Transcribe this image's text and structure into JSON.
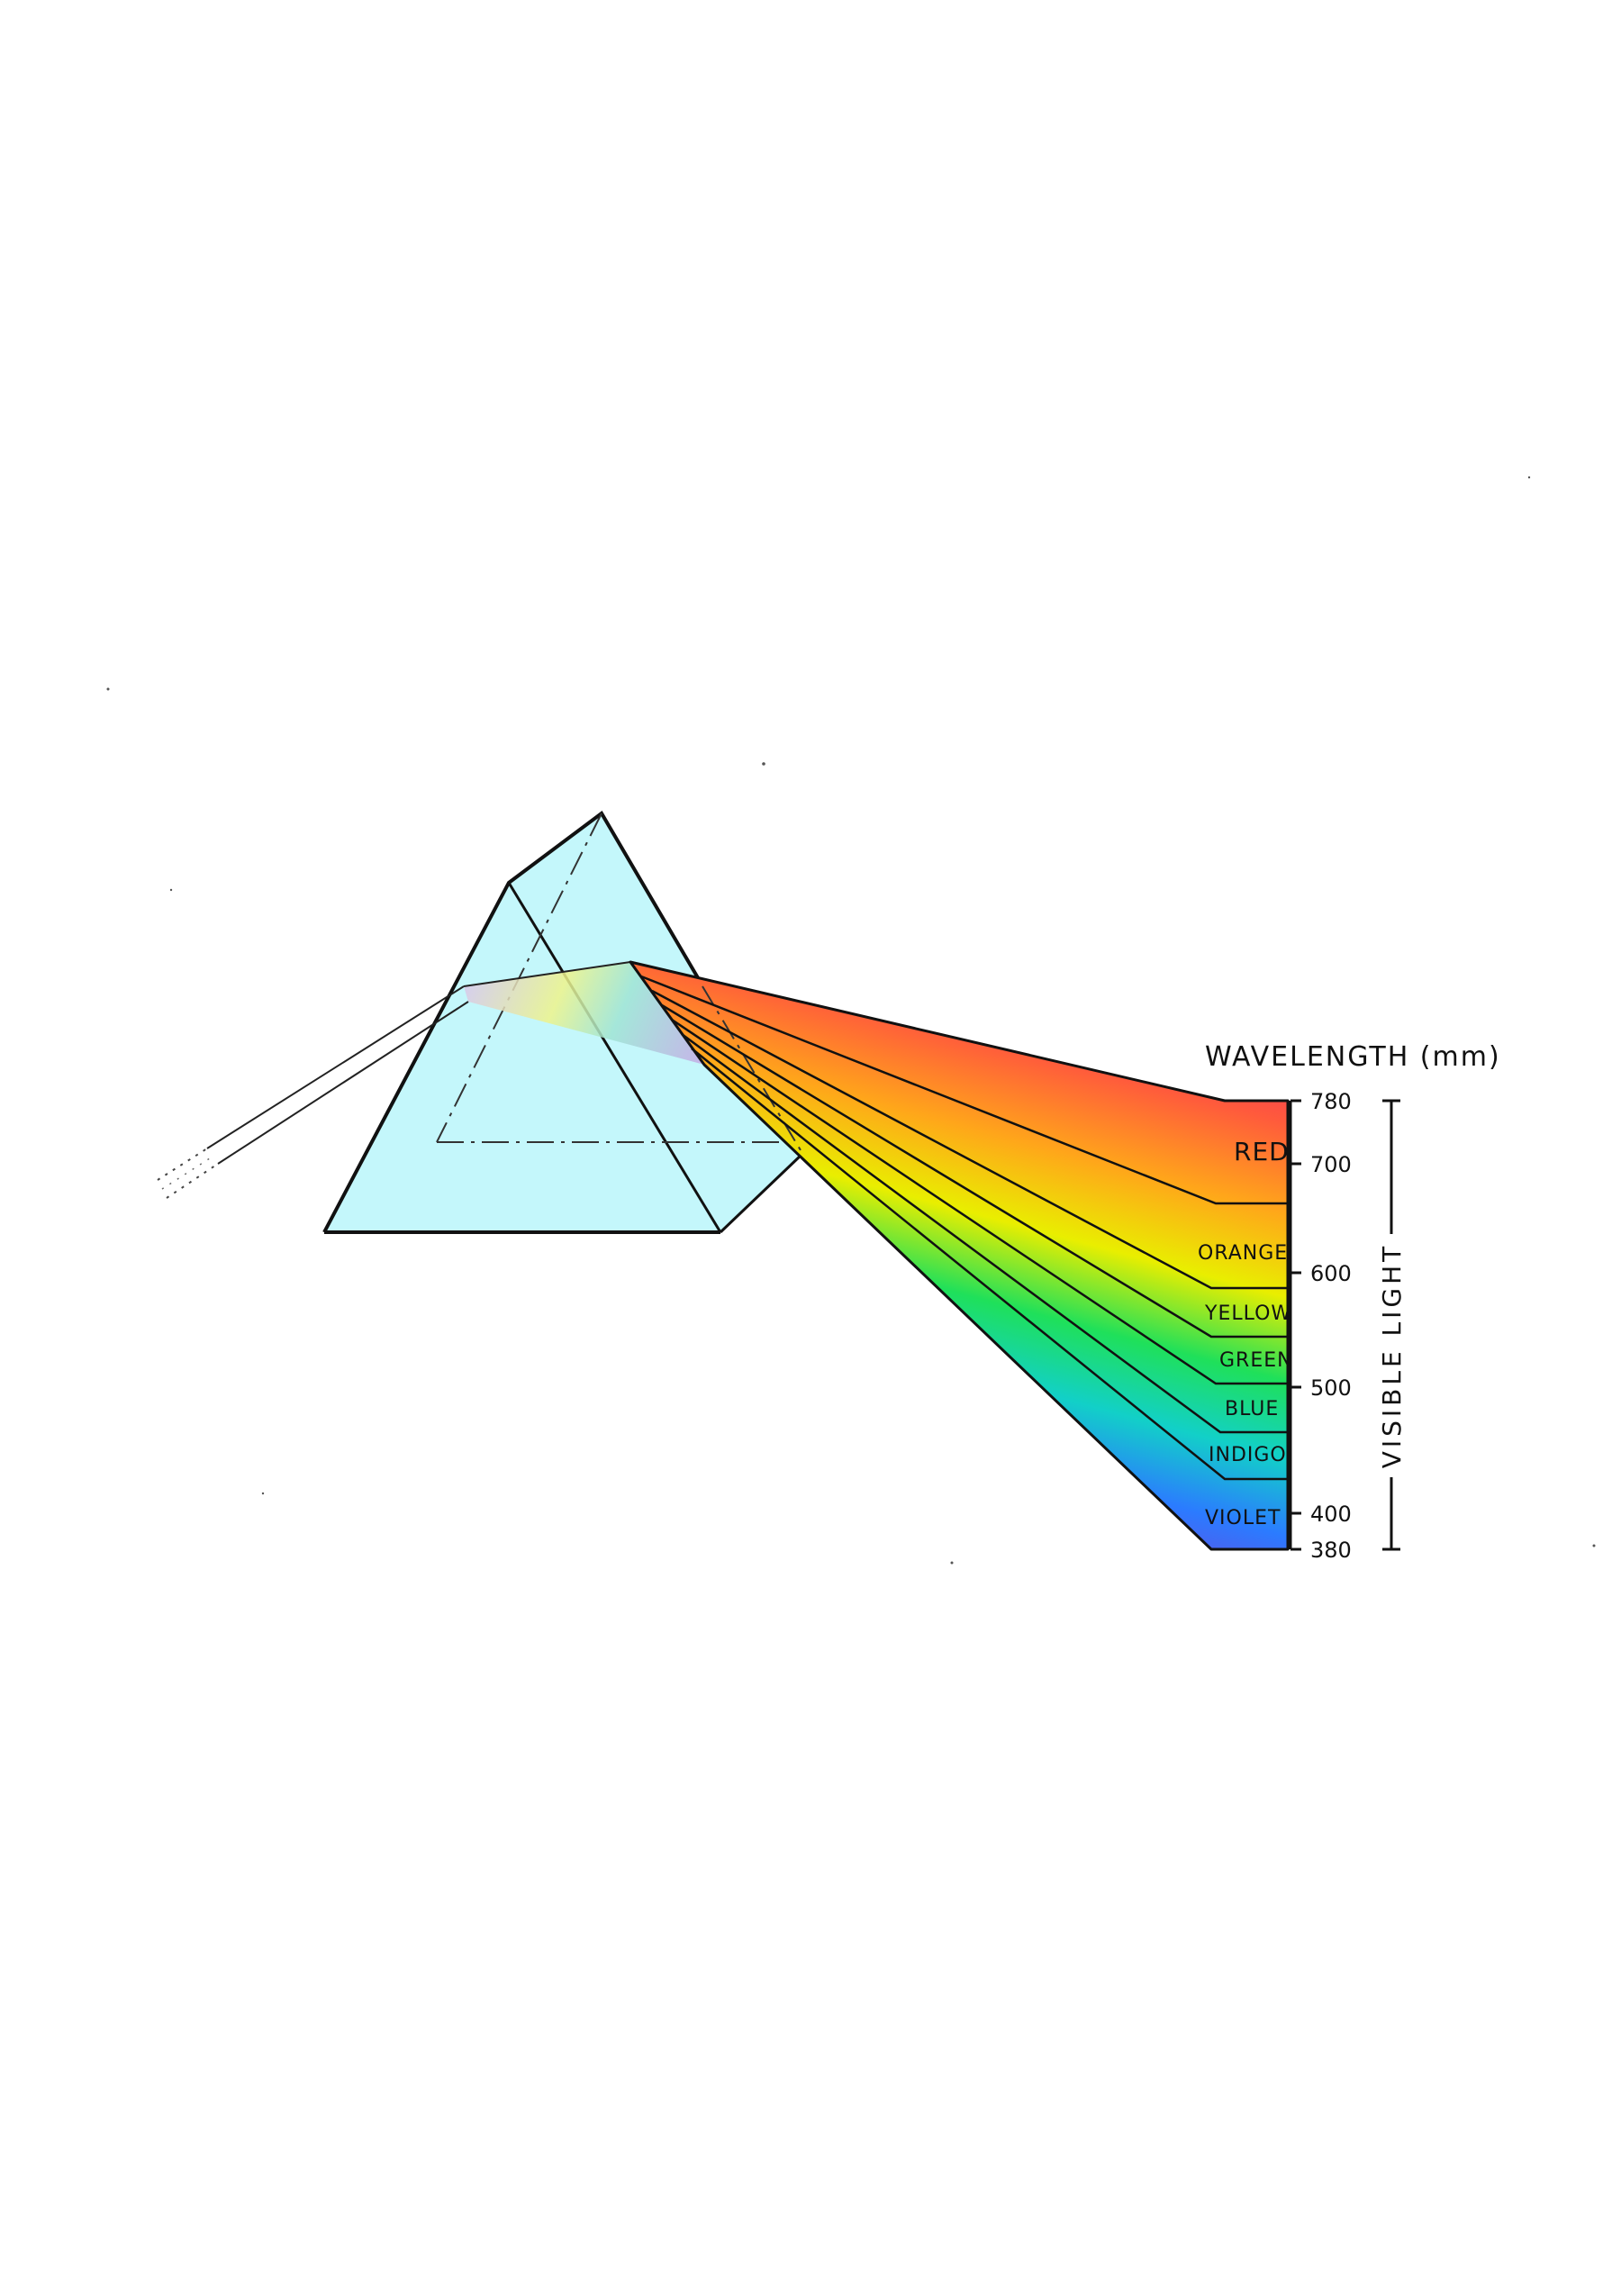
{
  "diagram": {
    "title": "WAVELENGTH (mm)",
    "side_label": "VISIBLE LIGHT",
    "bands": [
      {
        "label": "RED",
        "color": "#f0176e"
      },
      {
        "label": "ORANGE",
        "color": "#ffa61a"
      },
      {
        "label": "YELLOW",
        "color": "#e9ee00"
      },
      {
        "label": "GREEN",
        "color": "#1fe05a"
      },
      {
        "label": "BLUE",
        "color": "#12d0c8"
      },
      {
        "label": "INDIGO",
        "color": "#2b7bff"
      },
      {
        "label": "VIOLET",
        "color": "#8a2fd0"
      }
    ],
    "ticks": [
      "780",
      "700",
      "600",
      "500",
      "400",
      "380"
    ],
    "prism_color": "#c4f7fb"
  }
}
